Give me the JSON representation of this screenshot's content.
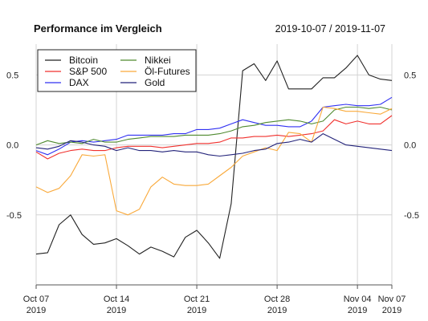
{
  "chart_data": {
    "type": "line",
    "title": "Performance im Vergleich",
    "date_range": "2019-10-07 / 2019-11-07",
    "grid": true,
    "legend_position": "top-left",
    "ylim": [
      -1.0,
      0.72
    ],
    "xlim": [
      "2019-10-07",
      "2019-11-07"
    ],
    "y_ticks": [
      {
        "value": 0.5,
        "label": "0.5"
      },
      {
        "value": 0.0,
        "label": "0.0"
      },
      {
        "value": -0.5,
        "label": "-0.5"
      }
    ],
    "x_ticks": [
      {
        "date": "2019-10-07",
        "line1": "Oct 07",
        "line2": "2019"
      },
      {
        "date": "2019-10-14",
        "line1": "Oct 14",
        "line2": "2019"
      },
      {
        "date": "2019-10-21",
        "line1": "Oct 21",
        "line2": "2019"
      },
      {
        "date": "2019-10-28",
        "line1": "Oct 28",
        "line2": "2019"
      },
      {
        "date": "2019-11-04",
        "line1": "Nov 04",
        "line2": "2019"
      },
      {
        "date": "2019-11-07",
        "line1": "Nov 07",
        "line2": "2019"
      }
    ],
    "x": [
      "2019-10-07",
      "2019-10-08",
      "2019-10-09",
      "2019-10-10",
      "2019-10-11",
      "2019-10-12",
      "2019-10-13",
      "2019-10-14",
      "2019-10-15",
      "2019-10-16",
      "2019-10-17",
      "2019-10-18",
      "2019-10-19",
      "2019-10-20",
      "2019-10-21",
      "2019-10-22",
      "2019-10-23",
      "2019-10-24",
      "2019-10-25",
      "2019-10-26",
      "2019-10-27",
      "2019-10-28",
      "2019-10-29",
      "2019-10-30",
      "2019-10-31",
      "2019-11-01",
      "2019-11-02",
      "2019-11-03",
      "2019-11-04",
      "2019-11-05",
      "2019-11-06",
      "2019-11-07"
    ],
    "series": [
      {
        "name": "Bitcoin",
        "color": "#222222",
        "values": [
          -0.78,
          -0.77,
          -0.57,
          -0.5,
          -0.64,
          -0.71,
          -0.7,
          -0.67,
          -0.72,
          -0.78,
          -0.73,
          -0.76,
          -0.8,
          -0.66,
          -0.61,
          -0.7,
          -0.81,
          -0.42,
          0.53,
          0.58,
          0.46,
          0.6,
          0.4,
          0.4,
          0.4,
          0.48,
          0.48,
          0.55,
          0.64,
          0.5,
          0.47,
          0.46
        ]
      },
      {
        "name": "S&P 500",
        "color": "#f0302d",
        "values": [
          -0.05,
          -0.1,
          -0.06,
          -0.04,
          -0.03,
          -0.04,
          -0.04,
          -0.02,
          -0.01,
          -0.01,
          -0.01,
          -0.02,
          -0.01,
          0.0,
          0.01,
          0.01,
          0.02,
          0.05,
          0.05,
          0.06,
          0.06,
          0.07,
          0.06,
          0.07,
          0.08,
          0.1,
          0.18,
          0.15,
          0.17,
          0.15,
          0.15,
          0.21
        ]
      },
      {
        "name": "DAX",
        "color": "#3131f2",
        "values": [
          -0.04,
          -0.07,
          -0.03,
          0.02,
          0.03,
          0.02,
          0.03,
          0.04,
          0.07,
          0.07,
          0.07,
          0.07,
          0.08,
          0.08,
          0.11,
          0.11,
          0.12,
          0.15,
          0.18,
          0.16,
          0.14,
          0.14,
          0.13,
          0.13,
          0.17,
          0.27,
          0.28,
          0.29,
          0.28,
          0.28,
          0.29,
          0.34
        ]
      },
      {
        "name": "Nikkei",
        "color": "#4f8a2f",
        "values": [
          0.0,
          0.03,
          0.01,
          0.02,
          0.01,
          0.04,
          0.02,
          0.02,
          0.04,
          0.05,
          0.06,
          0.06,
          0.06,
          0.07,
          0.07,
          0.07,
          0.08,
          0.1,
          0.13,
          0.14,
          0.16,
          0.17,
          0.18,
          0.17,
          0.15,
          0.17,
          0.25,
          0.27,
          0.27,
          0.26,
          0.27,
          0.25
        ]
      },
      {
        "name": "Öl-Futures",
        "color": "#f9a93a",
        "values": [
          -0.3,
          -0.34,
          -0.31,
          -0.22,
          -0.07,
          -0.08,
          -0.07,
          -0.47,
          -0.5,
          -0.46,
          -0.3,
          -0.23,
          -0.28,
          -0.29,
          -0.29,
          -0.28,
          -0.22,
          -0.16,
          -0.08,
          -0.05,
          -0.02,
          -0.04,
          0.09,
          0.08,
          0.02,
          0.27,
          0.26,
          0.24,
          0.24,
          0.23,
          0.22,
          0.26
        ]
      },
      {
        "name": "Gold",
        "color": "#23237a",
        "values": [
          -0.02,
          -0.03,
          -0.01,
          0.03,
          0.02,
          0.0,
          -0.01,
          -0.04,
          -0.02,
          -0.04,
          -0.04,
          -0.05,
          -0.04,
          -0.05,
          -0.05,
          -0.07,
          -0.08,
          -0.07,
          -0.06,
          -0.04,
          -0.03,
          0.01,
          0.02,
          0.04,
          0.02,
          0.08,
          0.04,
          0.0,
          -0.01,
          -0.02,
          -0.03,
          -0.04
        ]
      }
    ]
  }
}
